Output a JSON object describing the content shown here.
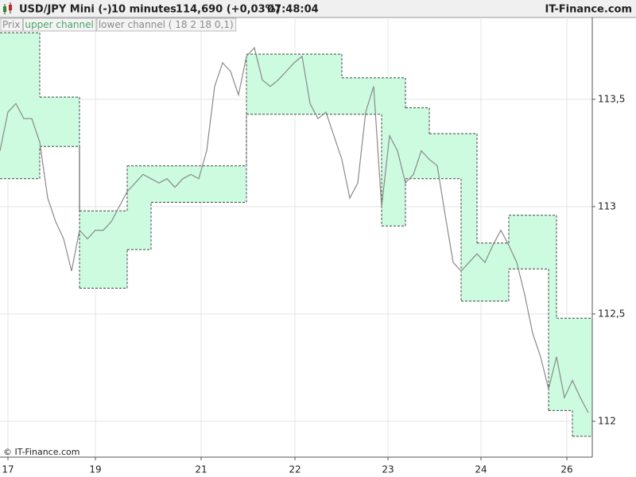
{
  "header": {
    "instrument": "USD/JPY Mini (-)",
    "interval": "10 minutes",
    "quote": "114,690 (+0,03%)",
    "time": "07:48:04",
    "brand": "IT-Finance.com"
  },
  "footer": "© IT-Finance.com",
  "chart_data": {
    "type": "line",
    "x": [
      0,
      1,
      2,
      3,
      4,
      5,
      6,
      7,
      8,
      9,
      10,
      11,
      12,
      13,
      14,
      15,
      16,
      17,
      18,
      19,
      20,
      21,
      22,
      23,
      24,
      25,
      26,
      27,
      28,
      29,
      30,
      31,
      32,
      33,
      34,
      35,
      36,
      37,
      38,
      39,
      40,
      41,
      42,
      43,
      44,
      45,
      46,
      47,
      48,
      49,
      50,
      51,
      52,
      53,
      54,
      55,
      56,
      57,
      58,
      59,
      60,
      61,
      62,
      63,
      64,
      65,
      66,
      67,
      68,
      69,
      70,
      71,
      72,
      73,
      74
    ],
    "series": [
      {
        "name": "Prix",
        "color": "#8a8a8a",
        "values": [
          113.26,
          113.44,
          113.48,
          113.41,
          113.41,
          113.3,
          113.04,
          112.93,
          112.85,
          112.7,
          112.89,
          112.85,
          112.89,
          112.89,
          112.93,
          113.0,
          113.07,
          113.11,
          113.15,
          113.13,
          113.11,
          113.13,
          113.09,
          113.13,
          113.15,
          113.13,
          113.26,
          113.56,
          113.67,
          113.63,
          113.52,
          113.7,
          113.74,
          113.59,
          113.56,
          113.59,
          113.63,
          113.67,
          113.7,
          113.48,
          113.41,
          113.44,
          113.33,
          113.22,
          113.04,
          113.11,
          113.44,
          113.56,
          113.0,
          113.33,
          113.26,
          113.11,
          113.15,
          113.26,
          113.22,
          113.19,
          112.96,
          112.74,
          112.7,
          112.74,
          112.78,
          112.74,
          112.82,
          112.89,
          112.82,
          112.74,
          112.59,
          112.41,
          112.3,
          112.15,
          112.3,
          112.11,
          112.19,
          112.11,
          112.04
        ]
      },
      {
        "name": "upper channel",
        "color": "#4aa36c",
        "values": [
          113.81,
          113.81,
          113.81,
          113.81,
          113.81,
          113.51,
          113.51,
          113.51,
          113.51,
          113.51,
          112.98,
          112.98,
          112.98,
          112.98,
          112.98,
          112.98,
          113.19,
          113.19,
          113.19,
          113.19,
          113.19,
          113.19,
          113.19,
          113.19,
          113.19,
          113.19,
          113.19,
          113.19,
          113.19,
          113.19,
          113.19,
          113.71,
          113.71,
          113.71,
          113.71,
          113.71,
          113.71,
          113.71,
          113.71,
          113.71,
          113.71,
          113.71,
          113.71,
          113.6,
          113.6,
          113.6,
          113.6,
          113.6,
          113.6,
          113.6,
          113.6,
          113.46,
          113.46,
          113.46,
          113.34,
          113.34,
          113.34,
          113.34,
          113.34,
          113.34,
          112.83,
          112.83,
          112.83,
          112.83,
          112.96,
          112.96,
          112.96,
          112.96,
          112.96,
          112.96,
          112.48,
          112.48,
          112.48,
          112.48,
          112.48
        ]
      },
      {
        "name": "lower channel ( 18 2 18 0,1)",
        "color": "#8a8a8a",
        "values": [
          113.13,
          113.13,
          113.13,
          113.13,
          113.13,
          113.28,
          113.28,
          113.28,
          113.28,
          113.28,
          112.62,
          112.62,
          112.62,
          112.62,
          112.62,
          112.62,
          112.8,
          112.8,
          112.8,
          113.02,
          113.02,
          113.02,
          113.02,
          113.02,
          113.02,
          113.02,
          113.02,
          113.02,
          113.02,
          113.02,
          113.02,
          113.43,
          113.43,
          113.43,
          113.43,
          113.43,
          113.43,
          113.43,
          113.43,
          113.43,
          113.43,
          113.43,
          113.43,
          113.43,
          113.43,
          113.43,
          113.43,
          113.43,
          112.91,
          112.91,
          112.91,
          113.13,
          113.13,
          113.13,
          113.13,
          113.13,
          113.13,
          113.13,
          112.56,
          112.56,
          112.56,
          112.56,
          112.56,
          112.56,
          112.71,
          112.71,
          112.71,
          112.71,
          112.71,
          112.05,
          112.05,
          112.05,
          111.93,
          111.93,
          111.93
        ]
      }
    ],
    "channel_fill": "#ccfbe0",
    "xlim": [
      0,
      74.5
    ],
    "xticks": [
      {
        "value": 1,
        "label": "17"
      },
      {
        "value": 12,
        "label": "19"
      },
      {
        "value": 25.3,
        "label": "21"
      },
      {
        "value": 37.1,
        "label": "22"
      },
      {
        "value": 48.8,
        "label": "23"
      },
      {
        "value": 60.5,
        "label": "24"
      },
      {
        "value": 71.3,
        "label": "26"
      }
    ],
    "ylim": [
      111.833,
      113.881
    ],
    "yticks": [
      {
        "value": 112,
        "label": "112"
      },
      {
        "value": 112.5,
        "label": "112,5"
      },
      {
        "value": 113,
        "label": "113"
      },
      {
        "value": 113.5,
        "label": "113,5"
      }
    ],
    "grid": true
  }
}
